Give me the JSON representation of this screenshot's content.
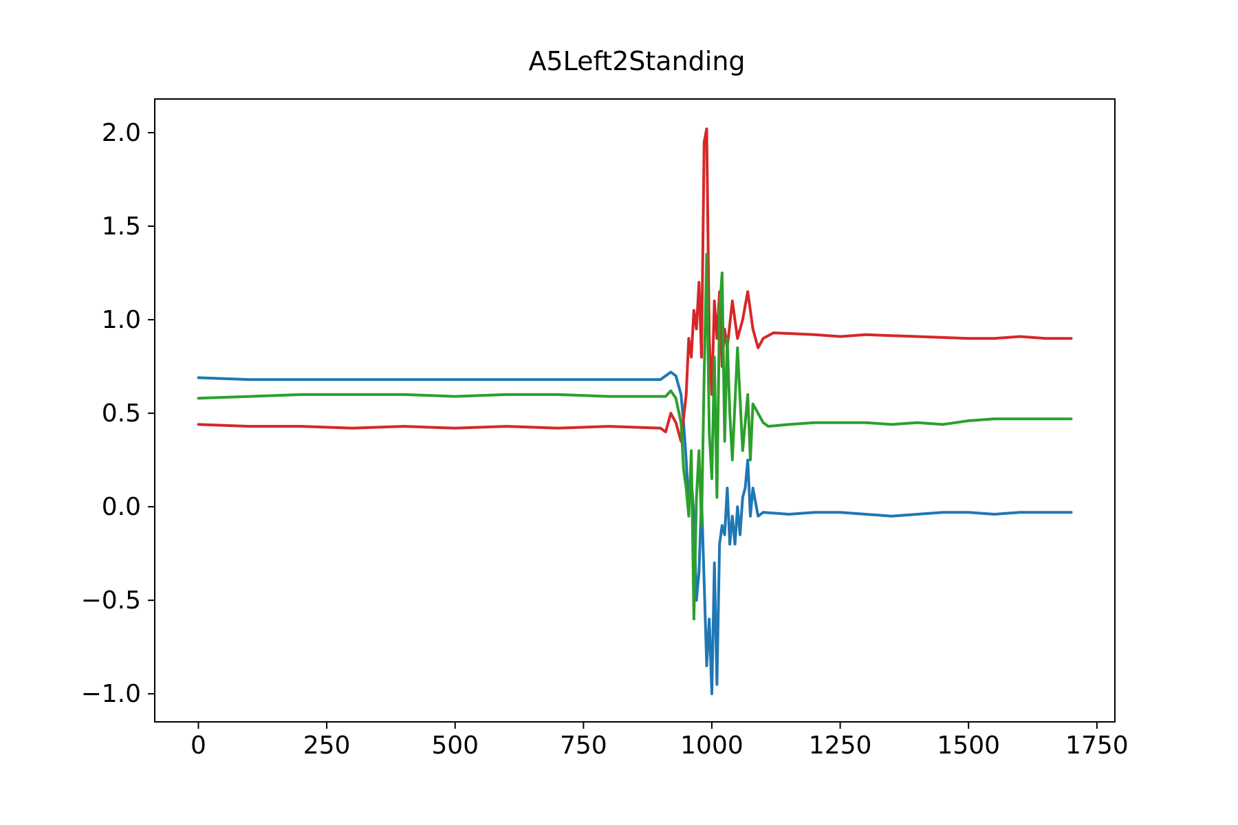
{
  "chart_data": {
    "type": "line",
    "title": "A5Left2Standing",
    "xlabel": "",
    "ylabel": "",
    "xlim": [
      -85,
      1785
    ],
    "ylim": [
      -1.15,
      2.18
    ],
    "xticks": [
      0,
      250,
      500,
      750,
      1000,
      1250,
      1500,
      1750
    ],
    "xtick_labels": [
      "0",
      "250",
      "500",
      "750",
      "1000",
      "1250",
      "1500",
      "1750"
    ],
    "yticks": [
      -1.0,
      -0.5,
      0.0,
      0.5,
      1.0,
      1.5,
      2.0
    ],
    "ytick_labels": [
      "−1.0",
      "−0.5",
      "0.0",
      "0.5",
      "1.0",
      "1.5",
      "2.0"
    ],
    "grid": false,
    "legend": false,
    "series": [
      {
        "color": "#1f77b4",
        "x": [
          0,
          100,
          200,
          300,
          400,
          500,
          600,
          700,
          800,
          900,
          920,
          930,
          940,
          945,
          950,
          955,
          960,
          965,
          970,
          975,
          980,
          985,
          990,
          995,
          1000,
          1005,
          1010,
          1015,
          1020,
          1025,
          1030,
          1035,
          1040,
          1045,
          1050,
          1055,
          1060,
          1065,
          1070,
          1075,
          1080,
          1090,
          1100,
          1150,
          1200,
          1250,
          1300,
          1350,
          1400,
          1450,
          1500,
          1550,
          1600,
          1650,
          1700
        ],
        "y": [
          0.69,
          0.68,
          0.68,
          0.68,
          0.68,
          0.68,
          0.68,
          0.68,
          0.68,
          0.68,
          0.72,
          0.7,
          0.6,
          0.45,
          0.25,
          0.0,
          0.15,
          -0.05,
          -0.5,
          -0.35,
          0.05,
          -0.4,
          -0.85,
          -0.6,
          -1.0,
          -0.3,
          -0.95,
          -0.2,
          -0.1,
          -0.15,
          0.1,
          -0.2,
          -0.05,
          -0.2,
          0.0,
          -0.15,
          0.05,
          0.1,
          0.25,
          -0.05,
          0.1,
          -0.05,
          -0.03,
          -0.04,
          -0.03,
          -0.03,
          -0.04,
          -0.05,
          -0.04,
          -0.03,
          -0.03,
          -0.04,
          -0.03,
          -0.03,
          -0.03
        ]
      },
      {
        "color": "#d62728",
        "x": [
          0,
          100,
          200,
          300,
          400,
          500,
          600,
          700,
          800,
          900,
          910,
          920,
          930,
          940,
          950,
          955,
          960,
          965,
          970,
          975,
          980,
          985,
          990,
          995,
          1000,
          1005,
          1010,
          1015,
          1020,
          1025,
          1030,
          1040,
          1050,
          1060,
          1070,
          1080,
          1090,
          1100,
          1120,
          1200,
          1250,
          1300,
          1400,
          1500,
          1550,
          1600,
          1650,
          1700
        ],
        "y": [
          0.44,
          0.43,
          0.43,
          0.42,
          0.43,
          0.42,
          0.43,
          0.42,
          0.43,
          0.42,
          0.4,
          0.5,
          0.45,
          0.35,
          0.6,
          0.9,
          0.8,
          1.05,
          0.95,
          1.2,
          0.8,
          1.95,
          2.02,
          0.9,
          0.6,
          1.1,
          0.9,
          1.15,
          0.75,
          0.95,
          0.85,
          1.1,
          0.9,
          1.0,
          1.15,
          0.95,
          0.85,
          0.9,
          0.93,
          0.92,
          0.91,
          0.92,
          0.91,
          0.9,
          0.9,
          0.91,
          0.9,
          0.9
        ]
      },
      {
        "color": "#2ca02c",
        "x": [
          0,
          100,
          200,
          300,
          400,
          500,
          600,
          700,
          800,
          900,
          910,
          920,
          930,
          940,
          945,
          950,
          955,
          960,
          965,
          970,
          975,
          980,
          985,
          990,
          995,
          1000,
          1005,
          1010,
          1015,
          1020,
          1025,
          1030,
          1035,
          1040,
          1050,
          1060,
          1070,
          1075,
          1080,
          1090,
          1100,
          1110,
          1150,
          1200,
          1250,
          1300,
          1350,
          1400,
          1450,
          1500,
          1550,
          1600,
          1650,
          1700
        ],
        "y": [
          0.58,
          0.59,
          0.6,
          0.6,
          0.6,
          0.59,
          0.6,
          0.6,
          0.59,
          0.59,
          0.59,
          0.62,
          0.58,
          0.45,
          0.2,
          0.1,
          -0.05,
          0.3,
          -0.6,
          0.05,
          0.3,
          -0.1,
          0.7,
          1.35,
          0.4,
          0.15,
          0.8,
          0.05,
          1.05,
          1.25,
          0.35,
          0.9,
          0.5,
          0.25,
          0.85,
          0.3,
          0.6,
          0.25,
          0.55,
          0.5,
          0.45,
          0.43,
          0.44,
          0.45,
          0.45,
          0.45,
          0.44,
          0.45,
          0.44,
          0.46,
          0.47,
          0.47,
          0.47,
          0.47
        ]
      }
    ]
  }
}
